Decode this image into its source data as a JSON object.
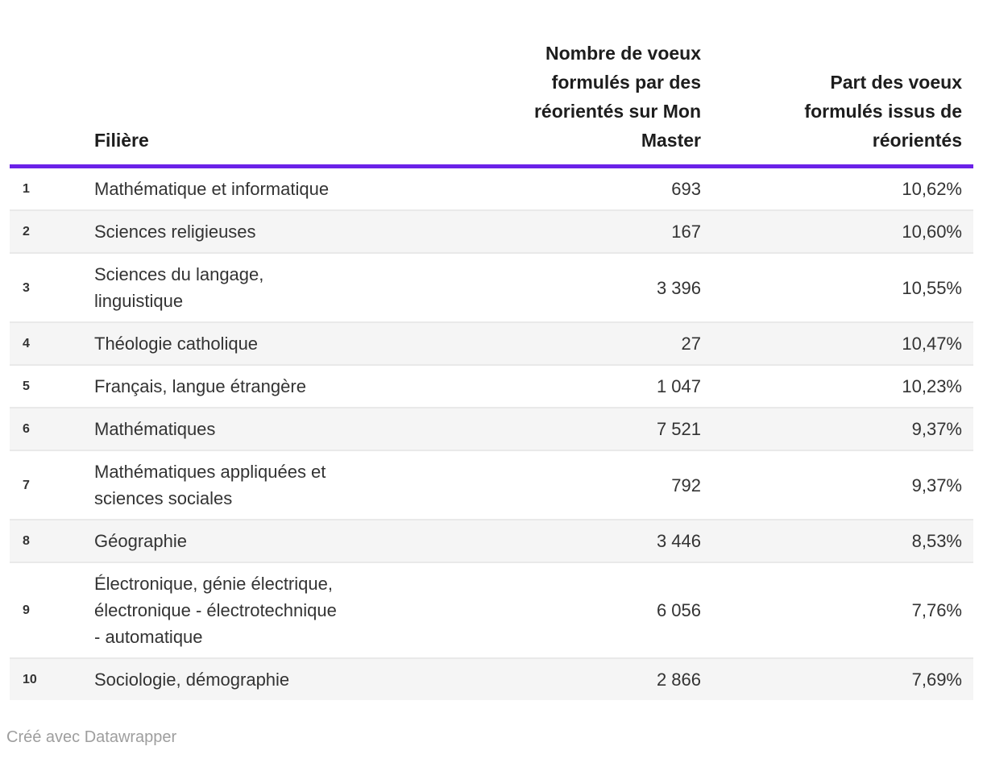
{
  "chart_data": {
    "type": "table",
    "columns": {
      "rank": "",
      "filiere": "Filière",
      "voeux": "Nombre de voeux\nformulés par des\nréorientés sur Mon\nMaster",
      "part": "Part des voeux\nformulés issus de\nréorientés"
    },
    "rows": [
      {
        "rank": "1",
        "filiere": "Mathématique et informatique",
        "voeux": "693",
        "part": "10,62%"
      },
      {
        "rank": "2",
        "filiere": "Sciences religieuses",
        "voeux": "167",
        "part": "10,60%"
      },
      {
        "rank": "3",
        "filiere": "Sciences du langage,\nlinguistique",
        "voeux": "3 396",
        "part": "10,55%"
      },
      {
        "rank": "4",
        "filiere": "Théologie catholique",
        "voeux": "27",
        "part": "10,47%"
      },
      {
        "rank": "5",
        "filiere": "Français, langue étrangère",
        "voeux": "1 047",
        "part": "10,23%"
      },
      {
        "rank": "6",
        "filiere": "Mathématiques",
        "voeux": "7 521",
        "part": "9,37%"
      },
      {
        "rank": "7",
        "filiere": "Mathématiques appliquées et\nsciences sociales",
        "voeux": "792",
        "part": "9,37%"
      },
      {
        "rank": "8",
        "filiere": "Géographie",
        "voeux": "3 446",
        "part": "8,53%"
      },
      {
        "rank": "9",
        "filiere": "Électronique, génie électrique,\nélectronique - électrotechnique\n- automatique",
        "voeux": "6 056",
        "part": "7,76%"
      },
      {
        "rank": "10",
        "filiere": "Sociologie, démographie",
        "voeux": "2 866",
        "part": "7,69%"
      }
    ]
  },
  "footer": {
    "credit": "Créé avec Datawrapper"
  },
  "colors": {
    "accent": "#6b21e8",
    "stripe": "#f5f5f5",
    "row_border": "#e9e9e9",
    "text": "#333333",
    "header_text": "#1d1d1d",
    "credit_text": "#9e9e9e"
  }
}
